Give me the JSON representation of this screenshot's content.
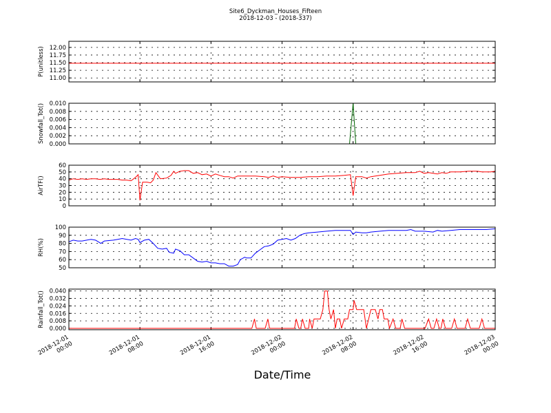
{
  "chart_data": {
    "type": "line",
    "title": "Site6_Dyckman_Houses_Fifteen",
    "subtitle": "2018-12-03 - (2018-337)",
    "xlabel": "Date/Time",
    "x_ticks": [
      {
        "t": 0,
        "line1": "2018-12-01",
        "line2": "00:00"
      },
      {
        "t": 8,
        "line1": "2018-12-01",
        "line2": "08:00"
      },
      {
        "t": 16,
        "line1": "2018-12-01",
        "line2": "16:00"
      },
      {
        "t": 24,
        "line1": "2018-12-02",
        "line2": "00:00"
      },
      {
        "t": 32,
        "line1": "2018-12-02",
        "line2": "08:00"
      },
      {
        "t": 40,
        "line1": "2018-12-02",
        "line2": "16:00"
      },
      {
        "t": 48,
        "line1": "2018-12-03",
        "line2": "00:00"
      }
    ],
    "xlim": [
      0,
      48
    ],
    "panels": [
      {
        "name": "pressure",
        "ylabel": "P(unitless)",
        "ylim": [
          10.87,
          12.2
        ],
        "yticks": [
          11.0,
          11.25,
          11.5,
          11.75,
          12.0
        ],
        "tick_labels": [
          "11.00",
          "11.25",
          "11.50",
          "11.75",
          "12.00"
        ],
        "color": "#ff0000",
        "points": [
          [
            0,
            11.48
          ],
          [
            48,
            11.48
          ]
        ]
      },
      {
        "name": "snowfall",
        "ylabel": "Snowfall_Tot()",
        "ylim": [
          0,
          0.01
        ],
        "yticks": [
          0,
          0.002,
          0.004,
          0.006,
          0.008,
          0.01
        ],
        "tick_labels": [
          "0.000",
          "0.002",
          "0.004",
          "0.006",
          "0.008",
          "0.010"
        ],
        "color": "#006400",
        "points": [
          [
            0,
            0
          ],
          [
            31.6,
            0
          ],
          [
            32.0,
            0.01
          ],
          [
            32.3,
            0
          ],
          [
            48,
            0
          ]
        ]
      },
      {
        "name": "airtemp",
        "ylabel": "AirTF()",
        "ylim": [
          0,
          60
        ],
        "yticks": [
          0,
          10,
          20,
          30,
          40,
          50,
          60
        ],
        "tick_labels": [
          "0",
          "10",
          "20",
          "30",
          "40",
          "50",
          "60"
        ],
        "color": "#ff0000",
        "points": [
          [
            0,
            38
          ],
          [
            0.5,
            40
          ],
          [
            1,
            39
          ],
          [
            1.5,
            40
          ],
          [
            2,
            39
          ],
          [
            2.5,
            40
          ],
          [
            3,
            40
          ],
          [
            3.5,
            39
          ],
          [
            4,
            40
          ],
          [
            4.5,
            39
          ],
          [
            5,
            39
          ],
          [
            5.5,
            39
          ],
          [
            6,
            38
          ],
          [
            6.5,
            38
          ],
          [
            7,
            37
          ],
          [
            7.5,
            42
          ],
          [
            7.8,
            46
          ],
          [
            8.0,
            8
          ],
          [
            8.3,
            35
          ],
          [
            8.8,
            35
          ],
          [
            9.2,
            34
          ],
          [
            9.5,
            38
          ],
          [
            9.8,
            49
          ],
          [
            10.3,
            40
          ],
          [
            11,
            41
          ],
          [
            11.5,
            45
          ],
          [
            11.8,
            51
          ],
          [
            12,
            48
          ],
          [
            12.5,
            51
          ],
          [
            13,
            52
          ],
          [
            13.5,
            52
          ],
          [
            14,
            48
          ],
          [
            14.5,
            49
          ],
          [
            15,
            46
          ],
          [
            15.5,
            47
          ],
          [
            16,
            44
          ],
          [
            16.5,
            47
          ],
          [
            17,
            45
          ],
          [
            17.5,
            43
          ],
          [
            18,
            43
          ],
          [
            18.5,
            41
          ],
          [
            19,
            44
          ],
          [
            20,
            44
          ],
          [
            21,
            44
          ],
          [
            22,
            43
          ],
          [
            22.5,
            42
          ],
          [
            23,
            44
          ],
          [
            23.5,
            42
          ],
          [
            24,
            43
          ],
          [
            25,
            42
          ],
          [
            26,
            42
          ],
          [
            27,
            43
          ],
          [
            28,
            43
          ],
          [
            29,
            44
          ],
          [
            30,
            44
          ],
          [
            31,
            45
          ],
          [
            31.7,
            46
          ],
          [
            32.0,
            15
          ],
          [
            32.3,
            43
          ],
          [
            33,
            43
          ],
          [
            33.5,
            41
          ],
          [
            34,
            43
          ],
          [
            35,
            45
          ],
          [
            35.5,
            46
          ],
          [
            36,
            47
          ],
          [
            37,
            48
          ],
          [
            38,
            49
          ],
          [
            39,
            49
          ],
          [
            39.5,
            51
          ],
          [
            40,
            48
          ],
          [
            40.5,
            49
          ],
          [
            41,
            48
          ],
          [
            41.5,
            47
          ],
          [
            42,
            49
          ],
          [
            42.5,
            48
          ],
          [
            43,
            50
          ],
          [
            44,
            50
          ],
          [
            45,
            51
          ],
          [
            46,
            51
          ],
          [
            46.5,
            50
          ],
          [
            47,
            50
          ],
          [
            47.5,
            50
          ],
          [
            48,
            51
          ]
        ]
      },
      {
        "name": "rh",
        "ylabel": "RH(%)",
        "ylim": [
          50,
          100
        ],
        "yticks": [
          50,
          60,
          70,
          80,
          90,
          100
        ],
        "tick_labels": [
          "50",
          "60",
          "70",
          "80",
          "90",
          "100"
        ],
        "color": "#0000ff",
        "points": [
          [
            0,
            82
          ],
          [
            0.5,
            84
          ],
          [
            1,
            83
          ],
          [
            1.5,
            83
          ],
          [
            2,
            84
          ],
          [
            2.5,
            85
          ],
          [
            3,
            84
          ],
          [
            3.3,
            82
          ],
          [
            3.6,
            80
          ],
          [
            4,
            83
          ],
          [
            5,
            84
          ],
          [
            5.5,
            85
          ],
          [
            6,
            86
          ],
          [
            7,
            84
          ],
          [
            7.5,
            86
          ],
          [
            7.8,
            85
          ],
          [
            8,
            81
          ],
          [
            8.5,
            84
          ],
          [
            9,
            85
          ],
          [
            9.5,
            80
          ],
          [
            10,
            74
          ],
          [
            10.5,
            73
          ],
          [
            11,
            74
          ],
          [
            11.3,
            69
          ],
          [
            11.8,
            68
          ],
          [
            12,
            73
          ],
          [
            12.5,
            71
          ],
          [
            13,
            66
          ],
          [
            13.5,
            66
          ],
          [
            14,
            62
          ],
          [
            14.5,
            58
          ],
          [
            15,
            57
          ],
          [
            15.5,
            58
          ],
          [
            16,
            56
          ],
          [
            16.5,
            56
          ],
          [
            17,
            55
          ],
          [
            17.5,
            55
          ],
          [
            18,
            52
          ],
          [
            18.5,
            52
          ],
          [
            19,
            54
          ],
          [
            19.3,
            60
          ],
          [
            19.8,
            63
          ],
          [
            20,
            62
          ],
          [
            20.5,
            62
          ],
          [
            21,
            68
          ],
          [
            21.5,
            72
          ],
          [
            22,
            76
          ],
          [
            22.5,
            77
          ],
          [
            23,
            79
          ],
          [
            23.5,
            84
          ],
          [
            24,
            85
          ],
          [
            24.5,
            86
          ],
          [
            25,
            84
          ],
          [
            25.5,
            86
          ],
          [
            26,
            90
          ],
          [
            26.5,
            92
          ],
          [
            27,
            93
          ],
          [
            28,
            94
          ],
          [
            29,
            95
          ],
          [
            30,
            96
          ],
          [
            31,
            96
          ],
          [
            31.7,
            96
          ],
          [
            32,
            91
          ],
          [
            32.3,
            94
          ],
          [
            33,
            93
          ],
          [
            33.5,
            93
          ],
          [
            34,
            94
          ],
          [
            35,
            95
          ],
          [
            36,
            96
          ],
          [
            37,
            96
          ],
          [
            38,
            96
          ],
          [
            38.5,
            97
          ],
          [
            39,
            95
          ],
          [
            40,
            95
          ],
          [
            41,
            94
          ],
          [
            41.5,
            96
          ],
          [
            42,
            95
          ],
          [
            43,
            96
          ],
          [
            44,
            97
          ],
          [
            45,
            97
          ],
          [
            46,
            97
          ],
          [
            47,
            97
          ],
          [
            48,
            98
          ]
        ]
      },
      {
        "name": "rainfall",
        "ylabel": "Rainfall_Tot()",
        "ylim": [
          -0.0015,
          0.042
        ],
        "yticks": [
          0,
          0.008,
          0.016,
          0.024,
          0.032,
          0.04
        ],
        "tick_labels": [
          "0.000",
          "0.008",
          "0.016",
          "0.024",
          "0.032",
          "0.040"
        ],
        "color": "#ff0000",
        "points": [
          [
            0,
            0
          ],
          [
            20.6,
            0
          ],
          [
            20.9,
            0.01
          ],
          [
            21.1,
            0
          ],
          [
            22.1,
            0
          ],
          [
            22.4,
            0.01
          ],
          [
            22.6,
            0
          ],
          [
            25.4,
            0
          ],
          [
            25.6,
            0.01
          ],
          [
            25.9,
            0
          ],
          [
            26.1,
            0
          ],
          [
            26.3,
            0.01
          ],
          [
            26.6,
            0
          ],
          [
            27.0,
            0
          ],
          [
            27.1,
            0.01
          ],
          [
            27.4,
            0
          ],
          [
            27.6,
            0.01
          ],
          [
            28.3,
            0.01
          ],
          [
            28.6,
            0.02
          ],
          [
            28.8,
            0.04
          ],
          [
            29.1,
            0.04
          ],
          [
            29.3,
            0.02
          ],
          [
            29.5,
            0.01
          ],
          [
            29.8,
            0.02
          ],
          [
            30.0,
            0
          ],
          [
            30.2,
            0.01
          ],
          [
            30.5,
            0.01
          ],
          [
            30.7,
            0
          ],
          [
            31.0,
            0.01
          ],
          [
            31.4,
            0.01
          ],
          [
            31.6,
            0.02
          ],
          [
            32.0,
            0.02
          ],
          [
            32.1,
            0.03
          ],
          [
            32.4,
            0.02
          ],
          [
            33.0,
            0.02
          ],
          [
            33.2,
            0.02
          ],
          [
            33.5,
            0
          ],
          [
            34.0,
            0.02
          ],
          [
            34.5,
            0.02
          ],
          [
            34.8,
            0.01
          ],
          [
            35.0,
            0.02
          ],
          [
            35.3,
            0.02
          ],
          [
            35.5,
            0.01
          ],
          [
            35.9,
            0.01
          ],
          [
            36.1,
            0
          ],
          [
            36.5,
            0.01
          ],
          [
            36.8,
            0
          ],
          [
            37.3,
            0
          ],
          [
            37.5,
            0.01
          ],
          [
            37.8,
            0
          ],
          [
            40.1,
            0
          ],
          [
            40.5,
            0.01
          ],
          [
            40.8,
            0
          ],
          [
            41.1,
            0
          ],
          [
            41.4,
            0.01
          ],
          [
            41.7,
            0
          ],
          [
            41.9,
            0
          ],
          [
            42.1,
            0.01
          ],
          [
            42.4,
            0
          ],
          [
            43.1,
            0
          ],
          [
            43.4,
            0.01
          ],
          [
            43.7,
            0
          ],
          [
            44.6,
            0
          ],
          [
            44.9,
            0.01
          ],
          [
            45.2,
            0
          ],
          [
            46.2,
            0
          ],
          [
            46.5,
            0.01
          ],
          [
            46.8,
            0
          ],
          [
            48,
            0
          ]
        ]
      }
    ]
  }
}
